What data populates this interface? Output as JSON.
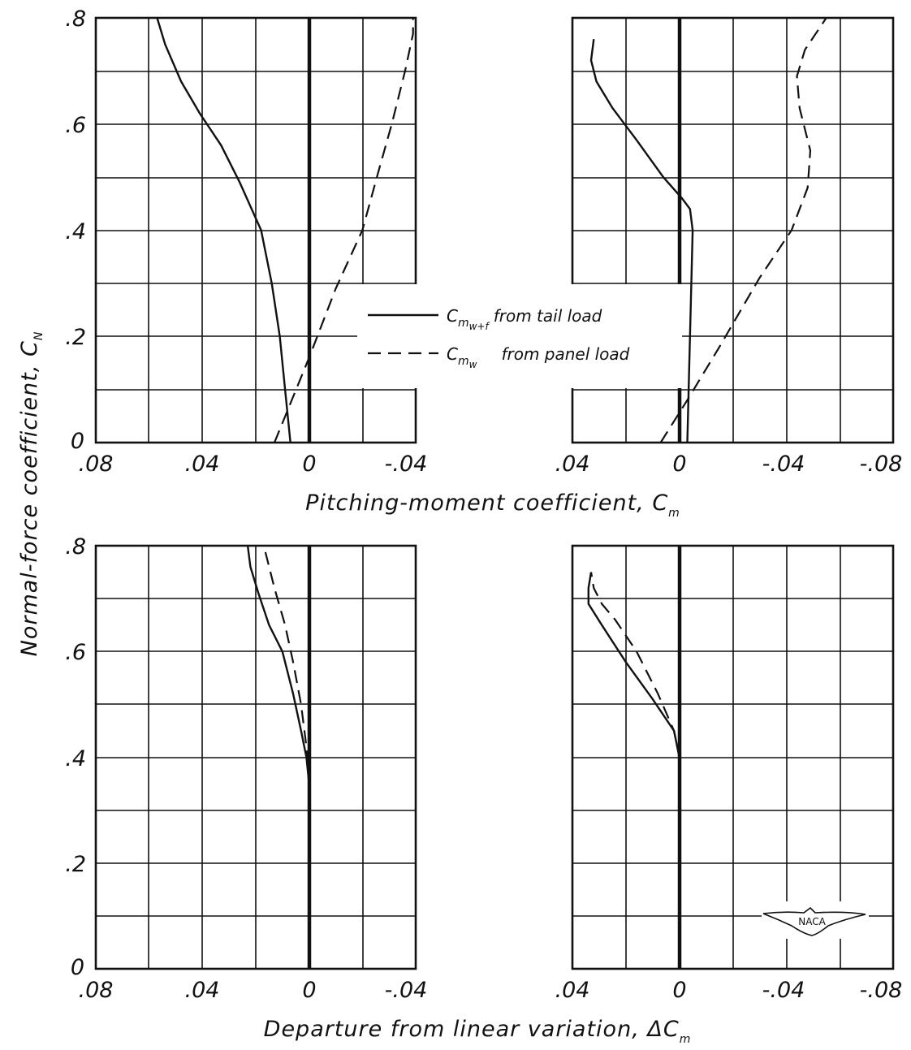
{
  "chart_data": [
    {
      "panel": "top-left",
      "type": "line",
      "xlim": [
        0.08,
        -0.04
      ],
      "ylim": [
        0,
        0.8
      ],
      "x_ticks": [
        ".08",
        ".04",
        "0",
        "-.04"
      ],
      "y_ticks": [
        "0",
        ".2",
        ".4",
        ".6",
        ".8"
      ],
      "series": [
        {
          "name": "C_m w+f from tail load",
          "style": "solid",
          "points": [
            [
              0.057,
              0.8
            ],
            [
              0.054,
              0.75
            ],
            [
              0.048,
              0.68
            ],
            [
              0.041,
              0.62
            ],
            [
              0.033,
              0.56
            ],
            [
              0.026,
              0.49
            ],
            [
              0.018,
              0.4
            ],
            [
              0.014,
              0.3
            ],
            [
              0.011,
              0.2
            ],
            [
              0.009,
              0.1
            ],
            [
              0.007,
              0.0
            ]
          ]
        },
        {
          "name": "C_m w from panel load",
          "style": "dashed",
          "points": [
            [
              0.013,
              0.0
            ],
            [
              0.0,
              0.16
            ],
            [
              -0.01,
              0.29
            ],
            [
              -0.02,
              0.4
            ],
            [
              -0.026,
              0.51
            ],
            [
              -0.031,
              0.6
            ],
            [
              -0.036,
              0.7
            ],
            [
              -0.039,
              0.77
            ],
            [
              -0.039,
              0.8
            ]
          ]
        }
      ]
    },
    {
      "panel": "top-right",
      "type": "line",
      "xlim": [
        0.04,
        -0.08
      ],
      "ylim": [
        0,
        0.8
      ],
      "x_ticks": [
        ".04",
        "0",
        "-.04",
        "-.08"
      ],
      "series": [
        {
          "name": "C_m w+f from tail load",
          "style": "solid",
          "points": [
            [
              -0.003,
              0.0
            ],
            [
              -0.004,
              0.2
            ],
            [
              -0.005,
              0.4
            ],
            [
              -0.004,
              0.44
            ],
            [
              -0.001,
              0.46
            ],
            [
              0.006,
              0.5
            ],
            [
              0.016,
              0.57
            ],
            [
              0.025,
              0.63
            ],
            [
              0.031,
              0.68
            ],
            [
              0.033,
              0.72
            ],
            [
              0.032,
              0.76
            ]
          ]
        },
        {
          "name": "C_m w from panel load",
          "style": "dashed",
          "points": [
            [
              0.007,
              0.0
            ],
            [
              -0.003,
              0.08
            ],
            [
              -0.015,
              0.18
            ],
            [
              -0.03,
              0.31
            ],
            [
              -0.042,
              0.4
            ],
            [
              -0.048,
              0.48
            ],
            [
              -0.049,
              0.55
            ],
            [
              -0.045,
              0.63
            ],
            [
              -0.044,
              0.69
            ],
            [
              -0.047,
              0.74
            ],
            [
              -0.055,
              0.8
            ]
          ]
        }
      ]
    },
    {
      "panel": "bottom-left",
      "type": "line",
      "xlim": [
        0.08,
        -0.04
      ],
      "ylim": [
        0,
        0.8
      ],
      "x_ticks": [
        ".08",
        ".04",
        "0",
        "-.04"
      ],
      "y_ticks": [
        "0",
        ".2",
        ".4",
        ".6",
        ".8"
      ],
      "series": [
        {
          "name": "C_m w+f from tail load",
          "style": "solid",
          "points": [
            [
              0.0,
              0.3
            ],
            [
              0.0,
              0.35
            ],
            [
              0.001,
              0.4
            ],
            [
              0.003,
              0.45
            ],
            [
              0.006,
              0.52
            ],
            [
              0.01,
              0.6
            ],
            [
              0.015,
              0.65
            ],
            [
              0.019,
              0.71
            ],
            [
              0.022,
              0.76
            ],
            [
              0.023,
              0.8
            ]
          ]
        },
        {
          "name": "C_m w from panel load",
          "style": "dashed",
          "points": [
            [
              0.0,
              0.35
            ],
            [
              0.001,
              0.42
            ],
            [
              0.003,
              0.5
            ],
            [
              0.006,
              0.58
            ],
            [
              0.009,
              0.65
            ],
            [
              0.013,
              0.72
            ],
            [
              0.017,
              0.8
            ]
          ]
        }
      ]
    },
    {
      "panel": "bottom-right",
      "type": "line",
      "xlim": [
        0.04,
        -0.08
      ],
      "ylim": [
        0,
        0.8
      ],
      "x_ticks": [
        ".04",
        "0",
        "-.04",
        "-.08"
      ],
      "series": [
        {
          "name": "C_m w+f from tail load",
          "style": "solid",
          "points": [
            [
              0.0,
              0.4
            ],
            [
              0.002,
              0.45
            ],
            [
              0.01,
              0.51
            ],
            [
              0.02,
              0.58
            ],
            [
              0.029,
              0.65
            ],
            [
              0.034,
              0.69
            ],
            [
              0.034,
              0.72
            ],
            [
              0.033,
              0.75
            ]
          ]
        },
        {
          "name": "C_m w from panel load",
          "style": "dashed",
          "points": [
            [
              0.0,
              0.4
            ],
            [
              0.002,
              0.45
            ],
            [
              0.008,
              0.52
            ],
            [
              0.016,
              0.6
            ],
            [
              0.024,
              0.66
            ],
            [
              0.029,
              0.69
            ],
            [
              0.032,
              0.72
            ],
            [
              0.033,
              0.75
            ]
          ]
        }
      ]
    }
  ],
  "axes": {
    "y_title": "Normal-force coefficient, C",
    "y_title_sub": "N",
    "x_title_top": "Pitching-moment coefficient, C",
    "x_title_top_sub": "m",
    "x_title_bottom": "Departure from linear variation, ΔC",
    "x_title_bottom_sub": "m"
  },
  "legend": {
    "solid_symbol": "C",
    "solid_sub": "m",
    "solid_sub2": "w+f",
    "solid_label": "from tail load",
    "dashed_symbol": "C",
    "dashed_sub": "m",
    "dashed_sub2": "w",
    "dashed_label": "from panel load"
  },
  "logo": {
    "text": "NACA"
  }
}
